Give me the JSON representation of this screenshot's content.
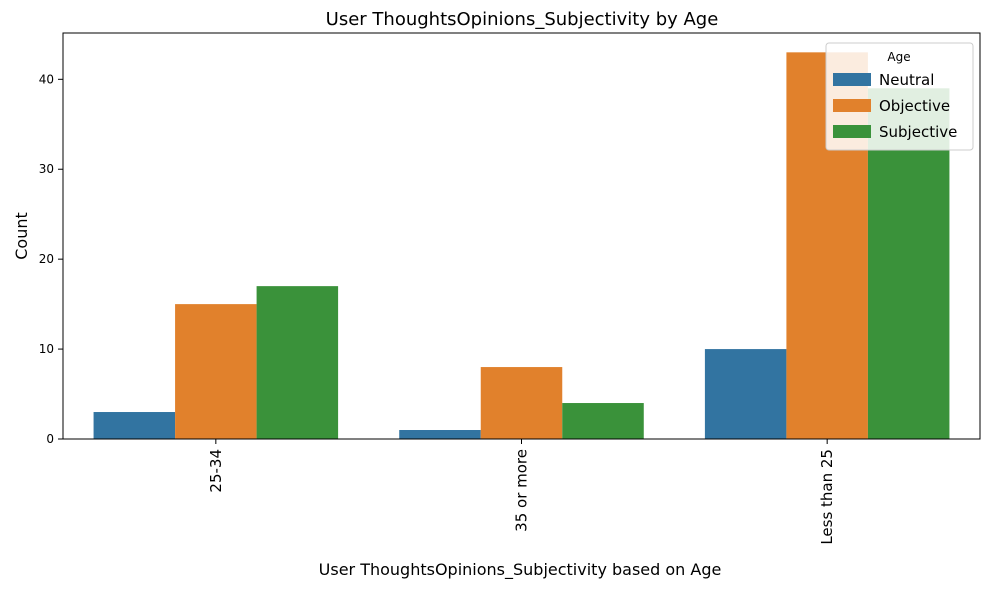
{
  "chart_data": {
    "type": "bar",
    "title": "User ThoughtsOpinions_Subjectivity by Age",
    "xlabel": "User ThoughtsOpinions_Subjectivity based on Age",
    "ylabel": "Count",
    "categories": [
      "25-34",
      "35 or more",
      "Less than 25"
    ],
    "series": [
      {
        "name": "Neutral",
        "color": "#3274a1",
        "values": [
          3,
          1,
          10
        ]
      },
      {
        "name": "Objective",
        "color": "#e1812c",
        "values": [
          15,
          8,
          43
        ]
      },
      {
        "name": "Subjective",
        "color": "#3a923a",
        "values": [
          17,
          4,
          39
        ]
      }
    ],
    "yticks": [
      0,
      10,
      20,
      30,
      40
    ],
    "ylim": [
      0,
      45.15
    ],
    "grid": false,
    "legend": {
      "title": "Age",
      "placement": "top-right"
    }
  }
}
